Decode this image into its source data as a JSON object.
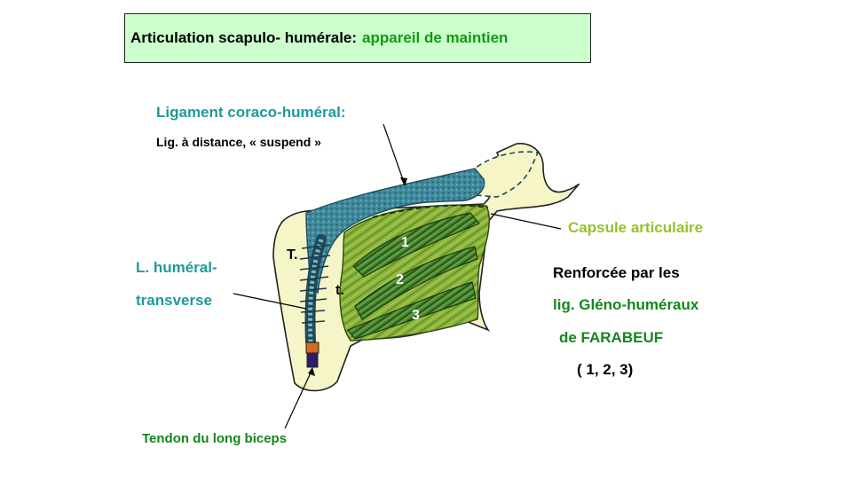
{
  "title": {
    "main": "Articulation scapulo- humérale:",
    "accent": "appareil de maintien"
  },
  "labels": {
    "coraco_title": "Ligament coraco-huméral:",
    "coraco_desc": "Lig. à distance, « suspend »",
    "transverse_line1": "L. huméral-",
    "transverse_line2": "transverse",
    "biceps": "Tendon du long biceps",
    "capsule": "Capsule articulaire",
    "reinforced_line1": "Renforcée par les",
    "reinforced_line2": "lig. Gléno-huméraux",
    "reinforced_line3": "de FARABEUF",
    "reinforced_line4": "( 1, 2, 3)"
  },
  "figure": {
    "tubercle_major": "T.",
    "tubercle_minor": "t.",
    "ligament_1": "1",
    "ligament_2": "2",
    "ligament_3": "3"
  },
  "colors": {
    "teal": "#1e9a9a",
    "lime": "#98c02a",
    "green": "#15861c",
    "bone": "#f5f5c8",
    "ligament_blue": "#3f8a9c",
    "capsule_green": "#8cb43a",
    "gleno_dark": "#3d7a2a"
  }
}
